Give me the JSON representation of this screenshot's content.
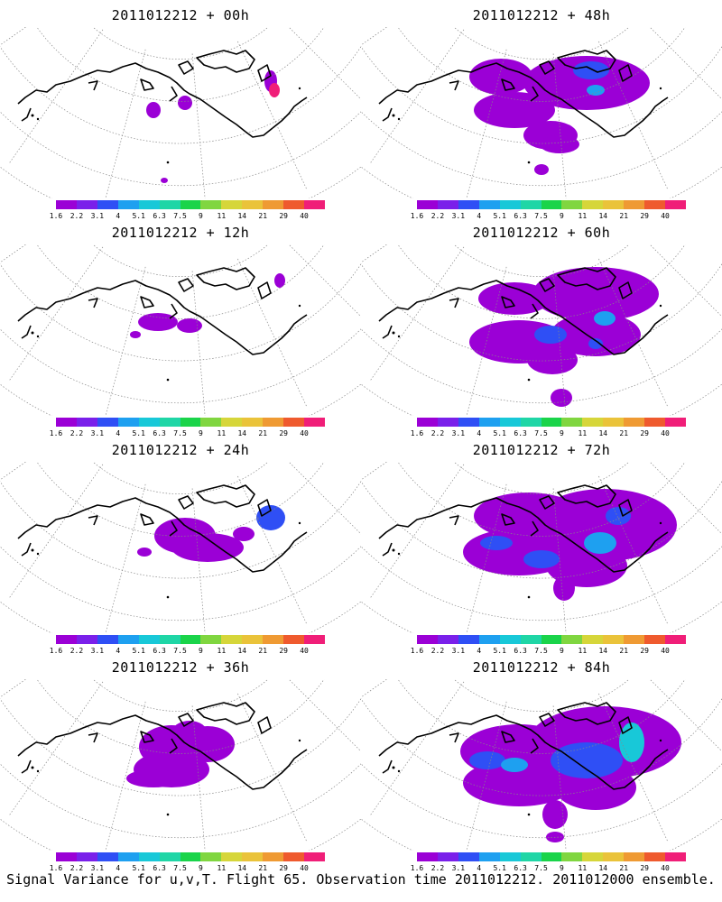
{
  "panels": [
    {
      "title": "2011012212 + 00h"
    },
    {
      "title": "2011012212 + 48h"
    },
    {
      "title": "2011012212 + 12h"
    },
    {
      "title": "2011012212 + 60h"
    },
    {
      "title": "2011012212 + 24h"
    },
    {
      "title": "2011012212 + 72h"
    },
    {
      "title": "2011012212 + 36h"
    },
    {
      "title": "2011012212 + 84h"
    }
  ],
  "colorbar": {
    "labels": [
      "1.6",
      "2.2",
      "3.1",
      "4",
      "5.1",
      "6.3",
      "7.5",
      "9",
      "11",
      "14",
      "21",
      "29",
      "40"
    ],
    "colors": [
      "#9b00d6",
      "#7a20ea",
      "#2f4ff5",
      "#1ea0f0",
      "#18c8d8",
      "#1fd6a6",
      "#1ad44a",
      "#80d640",
      "#d6d63a",
      "#eac33a",
      "#ef9a33",
      "#ef5a2e",
      "#f01e78"
    ]
  },
  "caption": "Signal Variance for u,v,T. Flight 65. Observation time 2011012212. 2011012000 ensemble."
}
